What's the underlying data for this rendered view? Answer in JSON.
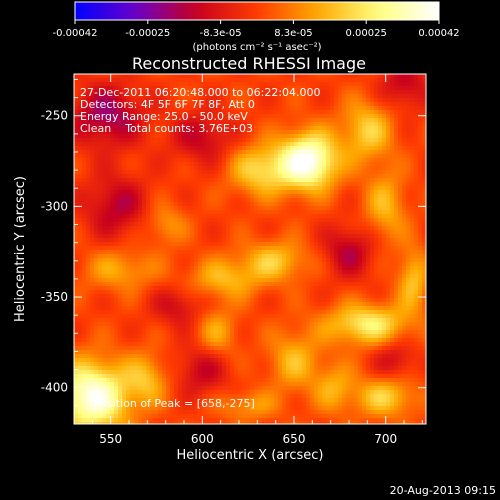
{
  "chart_data": {
    "type": "heatmap",
    "title": "Reconstructed RHESSI Image",
    "xlabel": "Heliocentric X (arcsec)",
    "ylabel": "Heliocentric Y (arcsec)",
    "xlim": [
      530,
      722
    ],
    "ylim": [
      -420,
      -227
    ],
    "x_ticks": [
      550,
      600,
      650,
      700
    ],
    "y_ticks": [
      -400,
      -350,
      -300,
      -250
    ],
    "colorbar": {
      "label": "(photons cm⁻² s⁻¹ asec⁻²)",
      "ticks": [
        "-0.00042",
        "-0.00025",
        "-8.3e-05",
        "8.3e-05",
        "0.00025",
        "0.00042"
      ],
      "range": [
        -0.00042,
        0.00042
      ],
      "colors": [
        "#0000ff",
        "#6a00c8",
        "#c8001e",
        "#ff3c00",
        "#ffa800",
        "#ffff80",
        "#ffffff"
      ]
    },
    "annotations": [
      "27-Dec-2011 06:20:48.000 to 06:22:04.000",
      "Detectors: 4F 5F 6F 7F 8F, Att 0",
      "Energy Range: 25.0 - 50.0 keV",
      "Clean    Total counts: 3.76E+03"
    ],
    "peak_label": "Position of Peak = [658,-275]",
    "peak": [
      658,
      -275
    ],
    "sources": [
      {
        "x": 658,
        "y": -275,
        "amp": 0.00042,
        "sx": 11,
        "sy": 11
      },
      {
        "x": 632,
        "y": -280,
        "amp": 0.00022,
        "sx": 12,
        "sy": 10
      },
      {
        "x": 690,
        "y": -258,
        "amp": 0.0002,
        "sx": 10,
        "sy": 12
      },
      {
        "x": 700,
        "y": -300,
        "amp": 0.00016,
        "sx": 8,
        "sy": 14
      },
      {
        "x": 640,
        "y": -330,
        "amp": 0.00018,
        "sx": 13,
        "sy": 8
      },
      {
        "x": 612,
        "y": -340,
        "amp": 0.00016,
        "sx": 14,
        "sy": 8
      },
      {
        "x": 555,
        "y": -335,
        "amp": 0.00014,
        "sx": 14,
        "sy": 8
      },
      {
        "x": 580,
        "y": -310,
        "amp": 0.00012,
        "sx": 8,
        "sy": 8
      },
      {
        "x": 690,
        "y": -365,
        "amp": 0.00026,
        "sx": 16,
        "sy": 8
      },
      {
        "x": 715,
        "y": -340,
        "amp": 0.00018,
        "sx": 6,
        "sy": 12
      },
      {
        "x": 650,
        "y": -385,
        "amp": 0.00016,
        "sx": 10,
        "sy": 12
      },
      {
        "x": 608,
        "y": -370,
        "amp": 0.00014,
        "sx": 8,
        "sy": 10
      },
      {
        "x": 540,
        "y": -405,
        "amp": 0.0004,
        "sx": 14,
        "sy": 14
      },
      {
        "x": 570,
        "y": -395,
        "amp": 0.00016,
        "sx": 8,
        "sy": 10
      },
      {
        "x": 700,
        "y": -405,
        "amp": 0.0002,
        "sx": 12,
        "sy": 8
      },
      {
        "x": 625,
        "y": -410,
        "amp": 0.00012,
        "sx": 12,
        "sy": 6
      },
      {
        "x": 672,
        "y": -400,
        "amp": 0.00014,
        "sx": 8,
        "sy": 10
      },
      {
        "x": 548,
        "y": -250,
        "amp": -0.0002,
        "sx": 14,
        "sy": 12
      },
      {
        "x": 600,
        "y": -262,
        "amp": -0.00014,
        "sx": 12,
        "sy": 10
      },
      {
        "x": 710,
        "y": -233,
        "amp": -0.00014,
        "sx": 10,
        "sy": 10
      },
      {
        "x": 553,
        "y": -300,
        "amp": -0.00016,
        "sx": 12,
        "sy": 12
      },
      {
        "x": 680,
        "y": -325,
        "amp": -0.00016,
        "sx": 10,
        "sy": 10
      },
      {
        "x": 587,
        "y": -355,
        "amp": -0.00012,
        "sx": 10,
        "sy": 8
      },
      {
        "x": 600,
        "y": -390,
        "amp": -0.00014,
        "sx": 10,
        "sy": 10
      },
      {
        "x": 705,
        "y": -385,
        "amp": -0.00012,
        "sx": 8,
        "sy": 8
      }
    ]
  },
  "footer": {
    "date_stamp": "20-Aug-2013 09:15"
  }
}
